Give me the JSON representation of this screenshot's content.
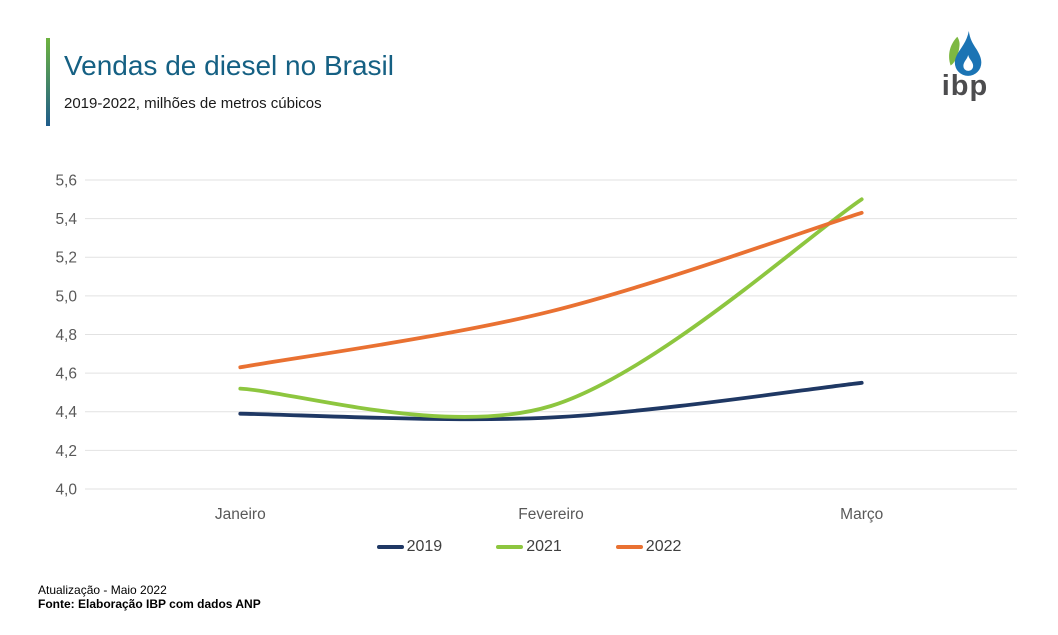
{
  "header": {
    "title": "Vendas de diesel no Brasil",
    "subtitle": "2019-2022, milhões de metros cúbicos",
    "logo_text": "ibp"
  },
  "chart_data": {
    "type": "line",
    "title": "Vendas de diesel no Brasil",
    "subtitle": "2019-2022, milhões de metros cúbicos",
    "categories": [
      "Janeiro",
      "Fevereiro",
      "Março"
    ],
    "series": [
      {
        "name": "2019",
        "color": "#1f3864",
        "values": [
          4.39,
          4.37,
          4.55
        ]
      },
      {
        "name": "2021",
        "color": "#8dc63f",
        "values": [
          4.52,
          4.43,
          5.5
        ]
      },
      {
        "name": "2022",
        "color": "#e97132",
        "values": [
          4.63,
          4.92,
          5.43
        ]
      }
    ],
    "xlabel": "",
    "ylabel": "",
    "ylim": [
      4.0,
      5.6
    ],
    "ytick_step": 0.2,
    "ytick_labels": [
      "4,0",
      "4,2",
      "4,4",
      "4,6",
      "4,8",
      "5,0",
      "5,2",
      "5,4",
      "5,6"
    ],
    "grid": true,
    "smooth": true,
    "legend_position": "bottom"
  },
  "footer": {
    "line1": "Atualização - Maio 2022",
    "line2": "Fonte: Elaboração IBP com dados ANP"
  },
  "colors": {
    "title": "#156083",
    "accent_green": "#6db33f",
    "accent_blue": "#1f5c8b",
    "axis_text": "#595959",
    "gridline": "#e2e2e2",
    "legend_text": "#3f3f3f",
    "footer_text": "#000000",
    "logo_gray": "#4c4c4e",
    "logo_blue": "#1b74b4",
    "logo_green": "#7db842"
  }
}
